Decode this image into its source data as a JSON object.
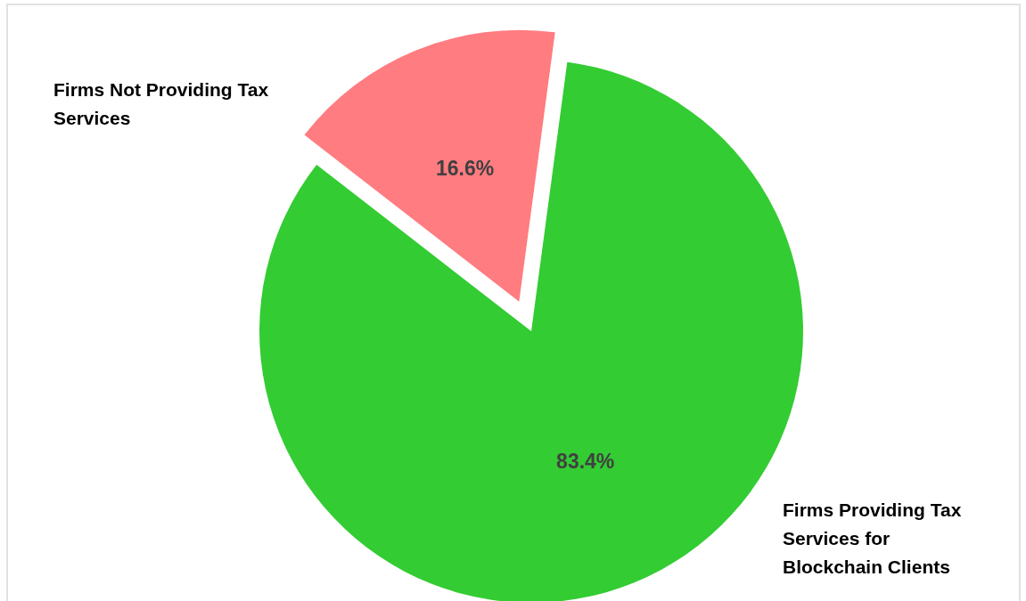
{
  "chart_data": {
    "type": "pie",
    "categories": [
      "Firms Providing Tax Services for Blockchain Clients",
      "Firms Not Providing Tax Services"
    ],
    "values": [
      83.4,
      16.6
    ],
    "colors": [
      "#33cc33",
      "#ff7c80"
    ],
    "value_labels": [
      "83.4%",
      "16.6%"
    ],
    "legend": false
  }
}
